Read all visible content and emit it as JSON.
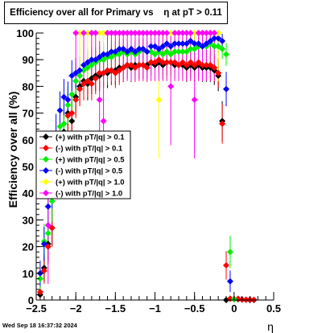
{
  "chart_data": {
    "type": "scatter",
    "title": "Efficiency over all for Primary vs    η at pT > 0.11",
    "xlabel": "η",
    "ylabel": "Efficiency over all (%)",
    "xlim": [
      -2.5,
      0.5
    ],
    "ylim": [
      0,
      100
    ],
    "xticks": [
      -2.5,
      -2,
      -1.5,
      -1,
      -0.5,
      0,
      0.5
    ],
    "xtick_labels": [
      "−2.5",
      "−2",
      "−1.5",
      "−1",
      "−0.5",
      "0",
      "0.5"
    ],
    "yticks": [
      0,
      10,
      20,
      30,
      40,
      50,
      60,
      70,
      80,
      90,
      100
    ],
    "ytick_labels": [
      "0",
      "10",
      "20",
      "30",
      "40",
      "50",
      "60",
      "70",
      "80",
      "90",
      "100"
    ],
    "grid": false,
    "legend_position": "left-middle",
    "series": [
      {
        "name": "(+) with pT/|q| > 0.1",
        "color": "#000000",
        "x": [
          -2.45,
          -2.4,
          -2.35,
          -2.3,
          -2.25,
          -2.2,
          -2.15,
          -2.1,
          -2.05,
          -2,
          -1.95,
          -1.9,
          -1.85,
          -1.8,
          -1.75,
          -1.7,
          -1.65,
          -1.6,
          -1.55,
          -1.5,
          -1.45,
          -1.4,
          -1.35,
          -1.3,
          -1.25,
          -1.2,
          -1.15,
          -1.1,
          -1.05,
          -1,
          -0.95,
          -0.9,
          -0.85,
          -0.8,
          -0.75,
          -0.7,
          -0.65,
          -0.6,
          -0.55,
          -0.5,
          -0.45,
          -0.4,
          -0.35,
          -0.3,
          -0.25,
          -0.2,
          -0.15,
          -0.1,
          -0.05,
          0,
          0.05,
          0.1,
          0.15,
          0.2,
          0.25
        ],
        "y": [
          2,
          12,
          21,
          27,
          55,
          62,
          63,
          70,
          67,
          76,
          80,
          82,
          81,
          83,
          84,
          84,
          85,
          85,
          86,
          86,
          87,
          87,
          88,
          87,
          88,
          88,
          88,
          88,
          89,
          88,
          89,
          88,
          89,
          89,
          88,
          88,
          88,
          87,
          88,
          87,
          88,
          87,
          87,
          87,
          86,
          84,
          67,
          0,
          0.5,
          0.3,
          0.3,
          0.2,
          0.1,
          0,
          0
        ]
      },
      {
        "name": "(-) with pT/|q| > 0.1",
        "color": "#ff0000",
        "x": [
          -2.45,
          -2.4,
          -2.35,
          -2.3,
          -2.25,
          -2.2,
          -2.15,
          -2.1,
          -2.05,
          -2,
          -1.95,
          -1.9,
          -1.85,
          -1.8,
          -1.75,
          -1.7,
          -1.65,
          -1.6,
          -1.55,
          -1.5,
          -1.45,
          -1.4,
          -1.35,
          -1.3,
          -1.25,
          -1.2,
          -1.15,
          -1.1,
          -1.05,
          -1,
          -0.95,
          -0.9,
          -0.85,
          -0.8,
          -0.75,
          -0.7,
          -0.65,
          -0.6,
          -0.55,
          -0.5,
          -0.45,
          -0.4,
          -0.35,
          -0.3,
          -0.25,
          -0.2,
          -0.15,
          -0.1,
          -0.05,
          0,
          0.05,
          0.1,
          0.15,
          0.2,
          0.25
        ],
        "y": [
          3,
          11,
          20,
          27,
          52,
          60,
          62,
          69,
          70,
          75,
          79,
          81,
          82,
          81,
          83,
          85,
          85,
          86,
          86,
          85,
          86,
          87,
          88,
          88,
          87,
          88,
          88,
          87,
          89,
          89,
          90,
          89,
          89,
          89,
          89,
          88,
          89,
          88,
          89,
          88,
          89,
          88,
          88,
          88,
          87,
          85,
          66,
          13,
          0.5,
          0.3,
          0.5,
          0.2,
          0.1,
          0.2,
          0.1
        ]
      },
      {
        "name": "(+) with pT/|q| > 0.5",
        "color": "#00ee00",
        "x": [
          -2.45,
          -2.4,
          -2.35,
          -2.3,
          -2.25,
          -2.2,
          -2.15,
          -2.1,
          -2.05,
          -2,
          -1.95,
          -1.9,
          -1.85,
          -1.8,
          -1.75,
          -1.7,
          -1.65,
          -1.6,
          -1.55,
          -1.5,
          -1.45,
          -1.4,
          -1.35,
          -1.3,
          -1.25,
          -1.2,
          -1.15,
          -1.1,
          -1.05,
          -1,
          -0.95,
          -0.9,
          -0.85,
          -0.8,
          -0.75,
          -0.7,
          -0.65,
          -0.6,
          -0.55,
          -0.5,
          -0.45,
          -0.4,
          -0.35,
          -0.3,
          -0.25,
          -0.2,
          -0.15,
          -0.1,
          -0.05,
          0
        ],
        "y": [
          8,
          22,
          25,
          37,
          57,
          65,
          66,
          73,
          77,
          82,
          84,
          86,
          87,
          88,
          89,
          90,
          90,
          91,
          91,
          92,
          92,
          93,
          92,
          93,
          92,
          93,
          94,
          93,
          93,
          92,
          93,
          92,
          93,
          92,
          93,
          93,
          93,
          93,
          94,
          94,
          95,
          95,
          95,
          96,
          95,
          95,
          94,
          92,
          18,
          0.3
        ]
      },
      {
        "name": "(-) with pT/|q| > 0.5",
        "color": "#0000ff",
        "x": [
          -2.45,
          -2.4,
          -2.35,
          -2.3,
          -2.25,
          -2.2,
          -2.15,
          -2.1,
          -2.05,
          -2,
          -1.95,
          -1.9,
          -1.85,
          -1.8,
          -1.75,
          -1.7,
          -1.65,
          -1.6,
          -1.55,
          -1.5,
          -1.45,
          -1.4,
          -1.35,
          -1.3,
          -1.25,
          -1.2,
          -1.15,
          -1.1,
          -1.05,
          -1,
          -0.95,
          -0.9,
          -0.85,
          -0.8,
          -0.75,
          -0.7,
          -0.65,
          -0.6,
          -0.55,
          -0.5,
          -0.45,
          -0.4,
          -0.35,
          -0.3,
          -0.25,
          -0.2,
          -0.15,
          -0.1,
          -0.05
        ],
        "y": [
          10,
          21,
          35,
          42,
          62,
          71,
          76,
          75,
          84,
          85,
          86,
          88,
          89,
          90,
          90,
          91,
          92,
          92,
          93,
          93,
          94,
          94,
          93,
          94,
          93,
          94,
          94,
          93,
          95,
          95,
          94,
          95,
          96,
          95,
          96,
          96,
          96,
          96,
          97,
          96,
          96,
          95,
          96,
          97,
          98,
          98,
          97,
          79,
          7
        ]
      },
      {
        "name": "(+) with pT/|q| > 1.0",
        "color": "#ffff00",
        "x": [
          -1.95,
          -1.9,
          -1.85,
          -1.8,
          -1.75,
          -1.7,
          -1.65,
          -1.6,
          -1.55,
          -1.5,
          -1.45,
          -1.4,
          -1.35,
          -1.3,
          -1.25,
          -1.2,
          -1.15,
          -1.1,
          -1.05,
          -1,
          -0.95,
          -0.9,
          -0.85,
          -0.8,
          -0.75,
          -0.7,
          -0.65,
          -0.6,
          -0.55,
          -0.5,
          -0.45,
          -0.4,
          -0.35,
          -0.3,
          -0.25,
          -0.2
        ],
        "y": [
          100,
          100,
          100,
          100,
          100,
          100,
          100,
          100,
          100,
          100,
          100,
          100,
          100,
          100,
          100,
          100,
          100,
          100,
          100,
          100,
          75,
          100,
          100,
          100,
          100,
          100,
          100,
          100,
          100,
          100,
          100,
          100,
          100,
          100,
          100,
          100
        ]
      },
      {
        "name": "(-) with pT/|q| > 1.0",
        "color": "#ff00ff",
        "x": [
          -2.35,
          -2.0,
          -1.9,
          -1.8,
          -1.75,
          -1.7,
          -1.65,
          -1.6,
          -1.55,
          -1.5,
          -1.45,
          -1.4,
          -1.35,
          -1.3,
          -1.25,
          -1.2,
          -1.15,
          -1.1,
          -1.05,
          -1,
          -0.95,
          -0.9,
          -0.85,
          -0.8,
          -0.75,
          -0.7,
          -0.65,
          -0.6,
          -0.55,
          -0.5,
          -0.45,
          -0.4,
          -0.35,
          -0.3,
          -0.25
        ],
        "y": [
          28,
          100,
          100,
          100,
          100,
          75,
          67,
          100,
          100,
          100,
          100,
          100,
          100,
          100,
          100,
          100,
          100,
          100,
          100,
          100,
          100,
          100,
          100,
          80,
          100,
          100,
          100,
          100,
          100,
          75,
          100,
          100,
          100,
          100,
          100
        ]
      }
    ]
  },
  "footer_text": "Wed Sep 18 16:37:32 2024"
}
